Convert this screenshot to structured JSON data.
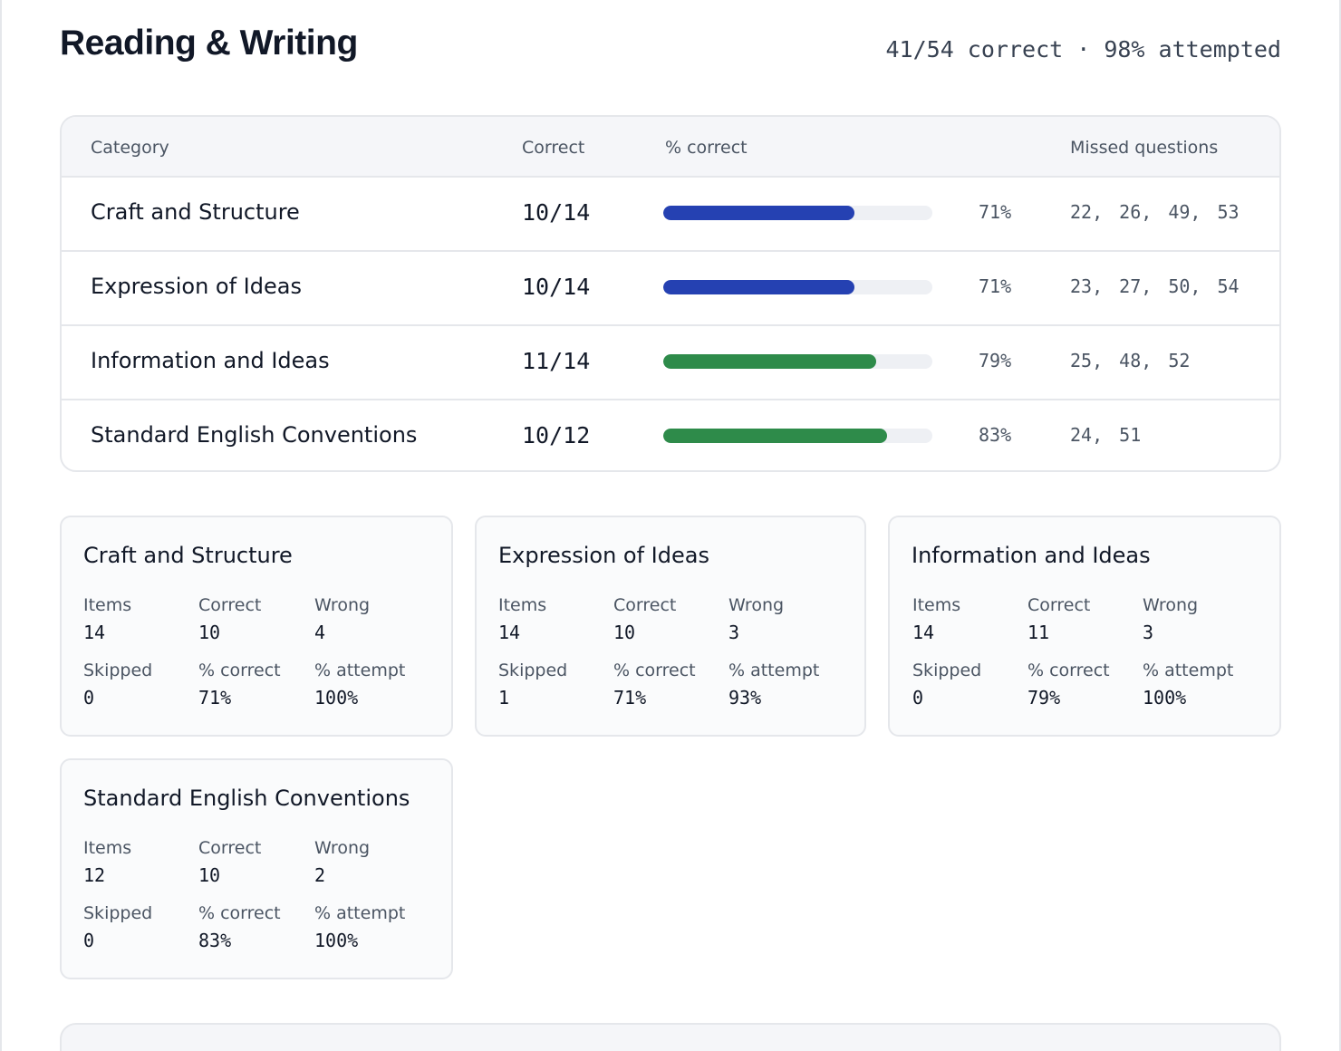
{
  "header": {
    "title": "Reading & Writing",
    "summary": "41/54 correct · 98% attempted"
  },
  "table": {
    "columns": {
      "category": "Category",
      "correct": "Correct",
      "pct_correct": "% correct",
      "missed": "Missed questions"
    },
    "rows": [
      {
        "category": "Craft and Structure",
        "correct": "10/14",
        "fraction": 0.71,
        "pct": "71%",
        "missed": "22, 26, 49, 53",
        "color": "#2541b2"
      },
      {
        "category": "Expression of Ideas",
        "correct": "10/14",
        "fraction": 0.71,
        "pct": "71%",
        "missed": "23, 27, 50, 54",
        "color": "#2541b2"
      },
      {
        "category": "Information and Ideas",
        "correct": "11/14",
        "fraction": 0.79,
        "pct": "79%",
        "missed": "25, 48, 52",
        "color": "#2e8b4a"
      },
      {
        "category": "Standard English Conventions",
        "correct": "10/12",
        "fraction": 0.83,
        "pct": "83%",
        "missed": "24, 51",
        "color": "#2e8b4a"
      }
    ]
  },
  "stat_labels": {
    "items": "Items",
    "correct": "Correct",
    "wrong": "Wrong",
    "skipped": "Skipped",
    "pct_correct": "% correct",
    "pct_attempt": "% attempt"
  },
  "cards": [
    {
      "title": "Craft and Structure",
      "items": "14",
      "correct": "10",
      "wrong": "4",
      "skipped": "0",
      "pct_correct": "71%",
      "pct_attempt": "100%"
    },
    {
      "title": "Expression of Ideas",
      "items": "14",
      "correct": "10",
      "wrong": "3",
      "skipped": "1",
      "pct_correct": "71%",
      "pct_attempt": "93%"
    },
    {
      "title": "Information and Ideas",
      "items": "14",
      "correct": "11",
      "wrong": "3",
      "skipped": "0",
      "pct_correct": "79%",
      "pct_attempt": "100%"
    },
    {
      "title": "Standard English Conventions",
      "items": "12",
      "correct": "10",
      "wrong": "2",
      "skipped": "0",
      "pct_correct": "83%",
      "pct_attempt": "100%"
    }
  ]
}
